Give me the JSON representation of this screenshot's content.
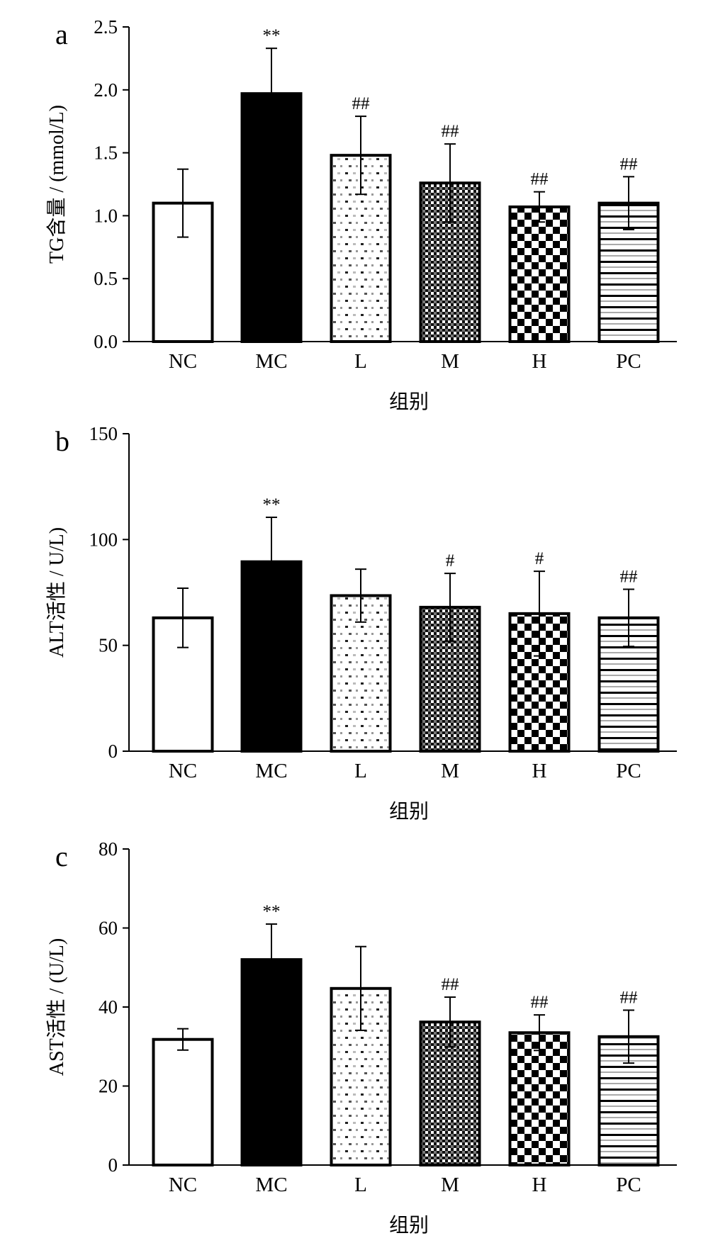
{
  "chart_data": [
    {
      "type": "bar",
      "panel": "a",
      "categories": [
        "NC",
        "MC",
        "L",
        "M",
        "H",
        "PC"
      ],
      "values": [
        1.1,
        1.97,
        1.48,
        1.26,
        1.07,
        1.1
      ],
      "errors": [
        0.27,
        0.36,
        0.31,
        0.31,
        0.12,
        0.21
      ],
      "significance": [
        "",
        "**",
        "##",
        "##",
        "##",
        "##"
      ],
      "xlabel": "组别",
      "ylabel": "TG含量 / (mmol/L)",
      "ylim": [
        0,
        2.5
      ],
      "yticks": [
        "0.0",
        "0.5",
        "1.0",
        "1.5",
        "2.0",
        "2.5"
      ],
      "grid": false
    },
    {
      "type": "bar",
      "panel": "b",
      "categories": [
        "NC",
        "MC",
        "L",
        "M",
        "H",
        "PC"
      ],
      "values": [
        63,
        89.5,
        73.5,
        68,
        65,
        63
      ],
      "errors": [
        14,
        21,
        12.5,
        16,
        20,
        13.5
      ],
      "significance": [
        "",
        "**",
        "",
        "#",
        "#",
        "##"
      ],
      "xlabel": "组别",
      "ylabel": "ALT活性 / U/L)",
      "ylim": [
        0,
        150
      ],
      "yticks": [
        "0",
        "50",
        "100",
        "150"
      ],
      "grid": false
    },
    {
      "type": "bar",
      "panel": "c",
      "categories": [
        "NC",
        "MC",
        "L",
        "M",
        "H",
        "PC"
      ],
      "values": [
        31.8,
        52,
        44.7,
        36.2,
        33.5,
        32.5
      ],
      "errors": [
        2.7,
        9,
        10.6,
        6.3,
        4.5,
        6.7
      ],
      "significance": [
        "",
        "**",
        "",
        "##",
        "##",
        "##"
      ],
      "xlabel": "组别",
      "ylabel": "AST活性 / (U/L)",
      "ylim": [
        0,
        80
      ],
      "yticks": [
        "0",
        "20",
        "40",
        "60",
        "80"
      ],
      "grid": false
    }
  ],
  "fill_patterns": [
    "white",
    "black",
    "sparse-dots",
    "dense-checker",
    "checkerboard",
    "horizontal-stripes"
  ]
}
